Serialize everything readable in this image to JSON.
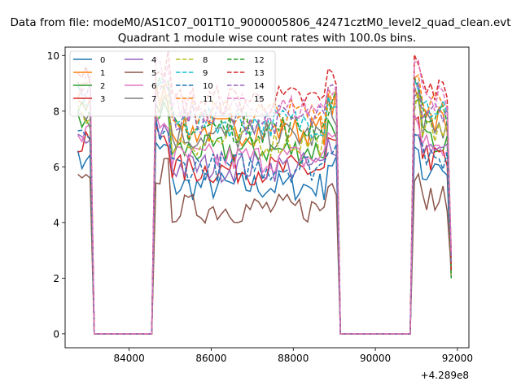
{
  "chart_data": {
    "type": "line",
    "suptitle": "Data from file: modeM0/AS1C07_001T10_9000005806_42471cztM0_level2_quad_clean.evt",
    "title": "Quadrant 1 module wise count rates with 100.0s bins.",
    "xlabel": "",
    "ylabel": "",
    "x_offset_label": "+4.289e8",
    "x_range": [
      82440,
      92280
    ],
    "y_range": [
      -0.5,
      10.3
    ],
    "x_ticks": [
      84000,
      86000,
      88000,
      90000,
      92000
    ],
    "x_tick_labels": [
      "84000",
      "86000",
      "88000",
      "90000",
      "92000"
    ],
    "y_ticks": [
      0,
      2,
      4,
      6,
      8,
      10
    ],
    "y_tick_labels": [
      "0",
      "2",
      "4",
      "6",
      "8",
      "10"
    ],
    "legend_position": "top-left",
    "legend_columns": 4,
    "segments": [
      {
        "start": 82750,
        "end": 83050,
        "level": "high"
      },
      {
        "start": 83150,
        "end": 84550,
        "level": "zero"
      },
      {
        "start": 84650,
        "end": 89050,
        "level": "high"
      },
      {
        "start": 89150,
        "end": 90850,
        "level": "zero"
      },
      {
        "start": 90950,
        "end": 91850,
        "level": "high"
      }
    ],
    "bin_width": 100,
    "series": [
      {
        "name": "0",
        "color": "#1f77b4",
        "style": "solid",
        "level": 5.3
      },
      {
        "name": "1",
        "color": "#ff7f0e",
        "style": "solid",
        "level": 7.3
      },
      {
        "name": "2",
        "color": "#2ca02c",
        "style": "solid",
        "level": 6.6
      },
      {
        "name": "3",
        "color": "#d62728",
        "style": "solid",
        "level": 5.9
      },
      {
        "name": "4",
        "color": "#9467bd",
        "style": "solid",
        "level": 6.0
      },
      {
        "name": "5",
        "color": "#8c564b",
        "style": "solid",
        "level": 4.5
      },
      {
        "name": "6",
        "color": "#e377c2",
        "style": "solid",
        "level": 6.3
      },
      {
        "name": "7",
        "color": "#7f7f7f",
        "style": "solid",
        "level": 7.1
      },
      {
        "name": "8",
        "color": "#bcbd22",
        "style": "dashed",
        "level": 6.9
      },
      {
        "name": "9",
        "color": "#17becf",
        "style": "dashed",
        "level": 7.6
      },
      {
        "name": "10",
        "color": "#1f77b4",
        "style": "dashed",
        "level": 6.0
      },
      {
        "name": "11",
        "color": "#ff7f0e",
        "style": "dashed",
        "level": 7.9
      },
      {
        "name": "12",
        "color": "#2ca02c",
        "style": "dashed",
        "level": 7.4
      },
      {
        "name": "13",
        "color": "#d62728",
        "style": "dashed",
        "level": 8.4
      },
      {
        "name": "14",
        "color": "#9467bd",
        "style": "dashed",
        "level": 7.7
      },
      {
        "name": "15",
        "color": "#e377c2",
        "style": "dashed",
        "level": 8.1
      }
    ]
  }
}
